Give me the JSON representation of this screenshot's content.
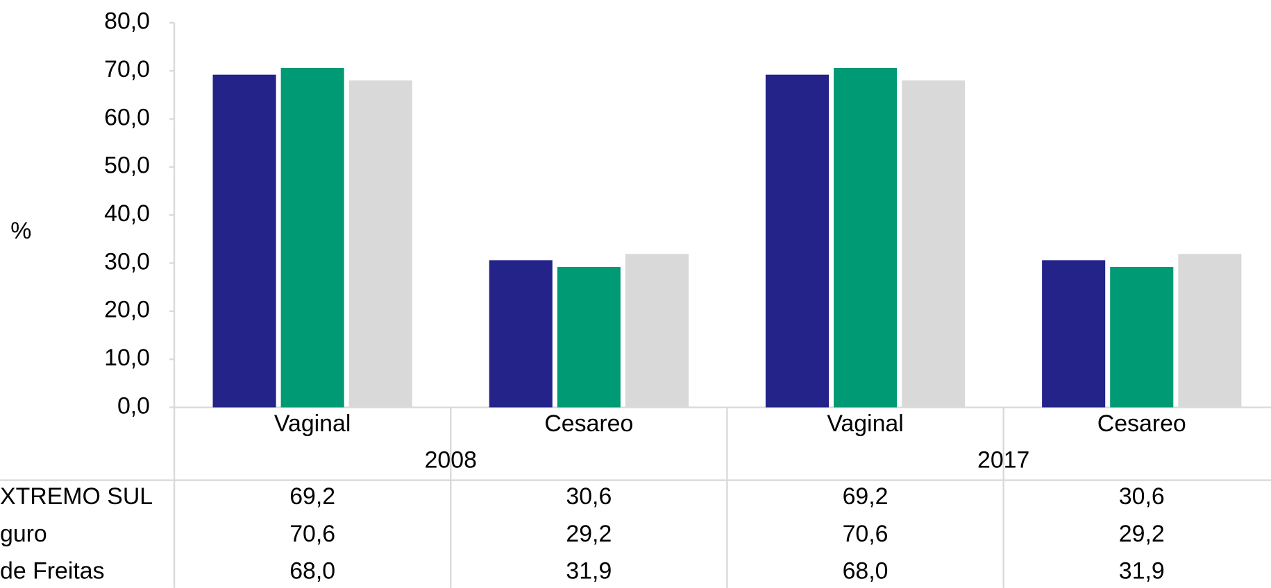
{
  "chart_data": {
    "type": "bar",
    "y_label": "%",
    "categories": [
      "Vaginal",
      "Cesareo",
      "Vaginal",
      "Cesareo"
    ],
    "groups": [
      "2008",
      "2017"
    ],
    "series": [
      {
        "name": "XTREMO SUL",
        "color": "#23238a",
        "values": [
          69.2,
          30.6,
          69.2,
          30.6
        ],
        "value_labels": [
          "69,2",
          "30,6",
          "69,2",
          "30,6"
        ]
      },
      {
        "name": "guro",
        "color": "#009a74",
        "values": [
          70.6,
          29.2,
          70.6,
          29.2
        ],
        "value_labels": [
          "70,6",
          "29,2",
          "70,6",
          "29,2"
        ]
      },
      {
        "name": "de Freitas",
        "color": "#d9d9d9",
        "values": [
          68.0,
          31.9,
          68.0,
          31.9
        ],
        "value_labels": [
          "68,0",
          "31,9",
          "68,0",
          "31,9"
        ]
      }
    ],
    "ylim": [
      0,
      80
    ],
    "yticks": [
      {
        "value": 0,
        "label": "0,0"
      },
      {
        "value": 10,
        "label": "10,0"
      },
      {
        "value": 20,
        "label": "20,0"
      },
      {
        "value": 30,
        "label": "30,0"
      },
      {
        "value": 40,
        "label": "40,0"
      },
      {
        "value": 50,
        "label": "50,0"
      },
      {
        "value": 60,
        "label": "60,0"
      },
      {
        "value": 70,
        "label": "70,0"
      },
      {
        "value": 80,
        "label": "80,0"
      }
    ]
  }
}
